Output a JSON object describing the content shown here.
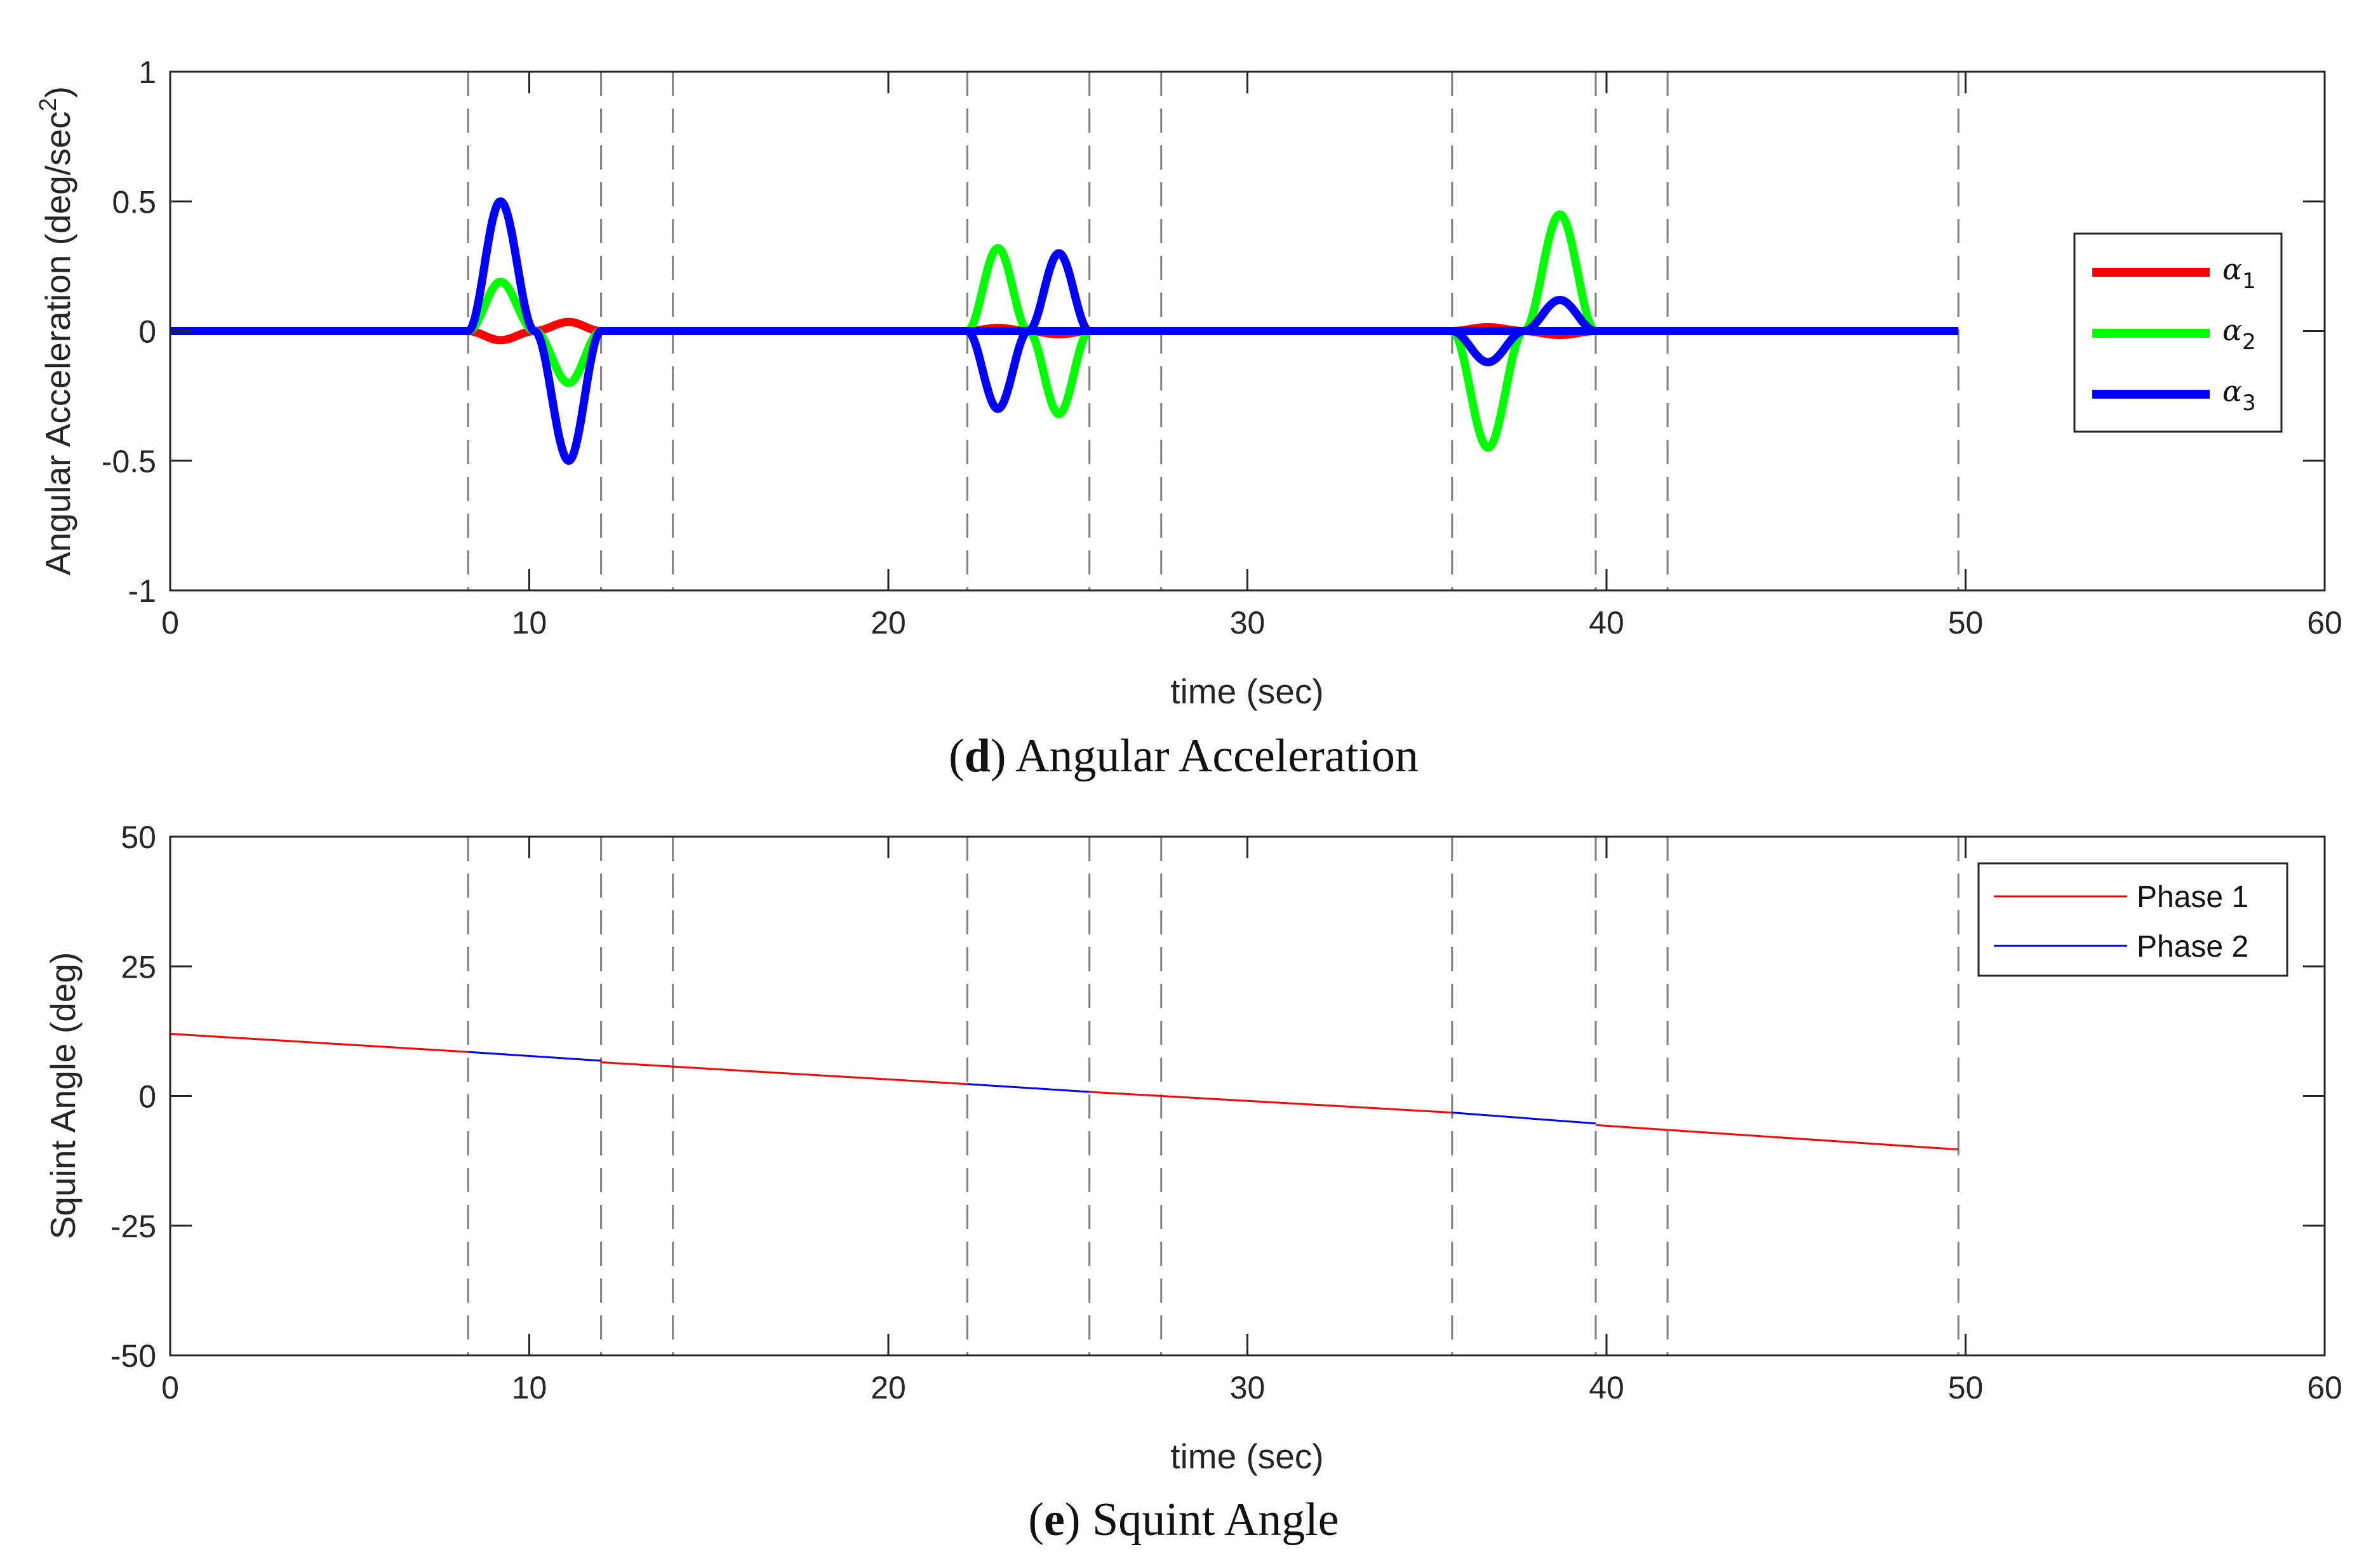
{
  "chart_data": [
    {
      "type": "line",
      "panel": "d",
      "caption_letter": "d",
      "caption_text": " Angular Acceleration",
      "xlabel": "time (sec)",
      "ylabel": "Angular Acceleration (deg/sec",
      "ylabel_superscript": "2",
      "ylabel_suffix": ")",
      "xlim": [
        0,
        60
      ],
      "ylim": [
        -1,
        1
      ],
      "xticks": [
        0,
        10,
        20,
        30,
        40,
        50,
        60
      ],
      "yticks": [
        -1,
        -0.5,
        0,
        0.5,
        1
      ],
      "ytick_labels": [
        "-1",
        "-0.5",
        "0",
        "0.5",
        "1"
      ],
      "phase_lines_x": [
        8.3,
        12.0,
        14.0,
        22.2,
        25.6,
        27.6,
        35.7,
        39.7,
        41.7,
        49.8
      ],
      "legend_position": "right",
      "series": [
        {
          "name": "α1",
          "symbol": "α",
          "subscript": "1",
          "color": "#ff0000",
          "segments": [
            {
              "x": [
                0,
                8.3,
                9.2,
                10.15,
                11.1,
                12.0,
                49.8
              ],
              "y": [
                0,
                0,
                -0.035,
                0,
                0.035,
                0,
                0
              ]
            },
            {
              "x": [
                22.2,
                23.05,
                23.9,
                24.75,
                25.6
              ],
              "y": [
                0,
                0.012,
                0,
                -0.012,
                0
              ]
            },
            {
              "x": [
                35.7,
                36.7,
                37.7,
                38.7,
                39.7
              ],
              "y": [
                0,
                0.015,
                0,
                -0.015,
                0
              ]
            }
          ]
        },
        {
          "name": "α2",
          "symbol": "α",
          "subscript": "2",
          "color": "#00ff00",
          "segments": [
            {
              "x": [
                8.3,
                9.2,
                10.15,
                11.1,
                12.0
              ],
              "y": [
                0,
                0.19,
                0,
                -0.2,
                0
              ]
            },
            {
              "x": [
                22.2,
                23.05,
                23.9,
                24.75,
                25.6
              ],
              "y": [
                0,
                0.32,
                0,
                -0.32,
                0
              ]
            },
            {
              "x": [
                35.7,
                36.7,
                37.7,
                38.7,
                39.7
              ],
              "y": [
                0,
                -0.45,
                0,
                0.45,
                0
              ]
            }
          ]
        },
        {
          "name": "α3",
          "symbol": "α",
          "subscript": "3",
          "color": "#0000ff",
          "segments": [
            {
              "x": [
                0,
                8.3,
                9.2,
                10.15,
                11.1,
                12.0,
                49.8
              ],
              "y": [
                0,
                0,
                0.5,
                0,
                -0.5,
                0,
                0
              ]
            },
            {
              "x": [
                22.2,
                23.05,
                23.9,
                24.75,
                25.6
              ],
              "y": [
                0,
                -0.3,
                0,
                0.3,
                0
              ]
            },
            {
              "x": [
                35.7,
                36.7,
                37.7,
                38.7,
                39.7
              ],
              "y": [
                0,
                -0.12,
                0,
                0.12,
                0
              ]
            }
          ]
        }
      ]
    },
    {
      "type": "line",
      "panel": "e",
      "caption_letter": "e",
      "caption_text": " Squint Angle",
      "xlabel": "time (sec)",
      "ylabel": "Squint Angle (deg)",
      "xlim": [
        0,
        60
      ],
      "ylim": [
        -50,
        50
      ],
      "xticks": [
        0,
        10,
        20,
        30,
        40,
        50,
        60
      ],
      "yticks": [
        -50,
        -25,
        0,
        25,
        50
      ],
      "ytick_labels": [
        "-50",
        "-25",
        "0",
        "25",
        "50"
      ],
      "phase_lines_x": [
        8.3,
        12.0,
        14.0,
        22.2,
        25.6,
        27.6,
        35.7,
        39.7,
        41.7,
        49.8
      ],
      "legend_position": "top-right",
      "series": [
        {
          "name": "Phase 1",
          "color": "#ff0000",
          "segments": [
            {
              "x": [
                0,
                8.3
              ],
              "y": [
                12,
                8.5
              ]
            },
            {
              "x": [
                12.0,
                22.2
              ],
              "y": [
                6.5,
                2.3
              ]
            },
            {
              "x": [
                25.6,
                35.7
              ],
              "y": [
                0.8,
                -3.2
              ]
            },
            {
              "x": [
                39.7,
                49.8
              ],
              "y": [
                -5.6,
                -10.3
              ]
            }
          ]
        },
        {
          "name": "Phase 2",
          "color": "#0000ff",
          "segments": [
            {
              "x": [
                8.3,
                12.0
              ],
              "y": [
                8.5,
                6.8
              ]
            },
            {
              "x": [
                22.2,
                25.6
              ],
              "y": [
                2.3,
                0.8
              ]
            },
            {
              "x": [
                35.7,
                39.7
              ],
              "y": [
                -3.2,
                -5.3
              ]
            }
          ]
        }
      ]
    }
  ]
}
